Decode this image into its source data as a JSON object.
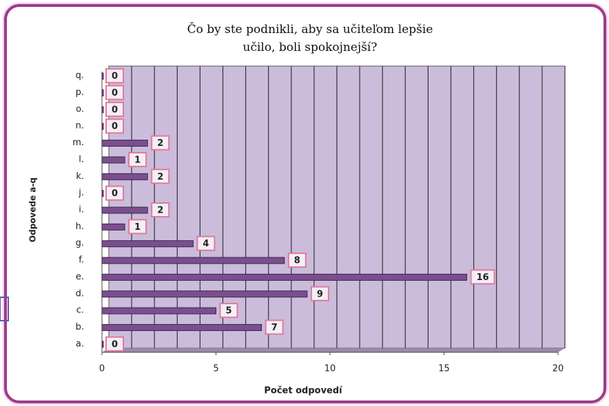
{
  "chart_data": {
    "type": "bar",
    "orientation": "horizontal",
    "title": "Čo by ste podnikli, aby sa učiteľom lepšie učilo, boli spokojnejší?",
    "x_label": "Počet odpovedí",
    "y_label": "Odpovede a-q",
    "categories": [
      "a.",
      "b.",
      "c.",
      "d.",
      "e.",
      "f.",
      "g.",
      "h.",
      "i.",
      "j.",
      "k.",
      "l.",
      "m.",
      "n.",
      "o.",
      "p.",
      "q."
    ],
    "values": [
      0,
      7,
      5,
      9,
      16,
      8,
      4,
      1,
      2,
      0,
      2,
      1,
      2,
      0,
      0,
      0,
      0
    ],
    "color": "#7b4f8e",
    "xlim": [
      0,
      20
    ],
    "xticks": [
      0,
      5,
      10,
      15,
      20
    ],
    "grid": true,
    "grid_step": 1
  }
}
